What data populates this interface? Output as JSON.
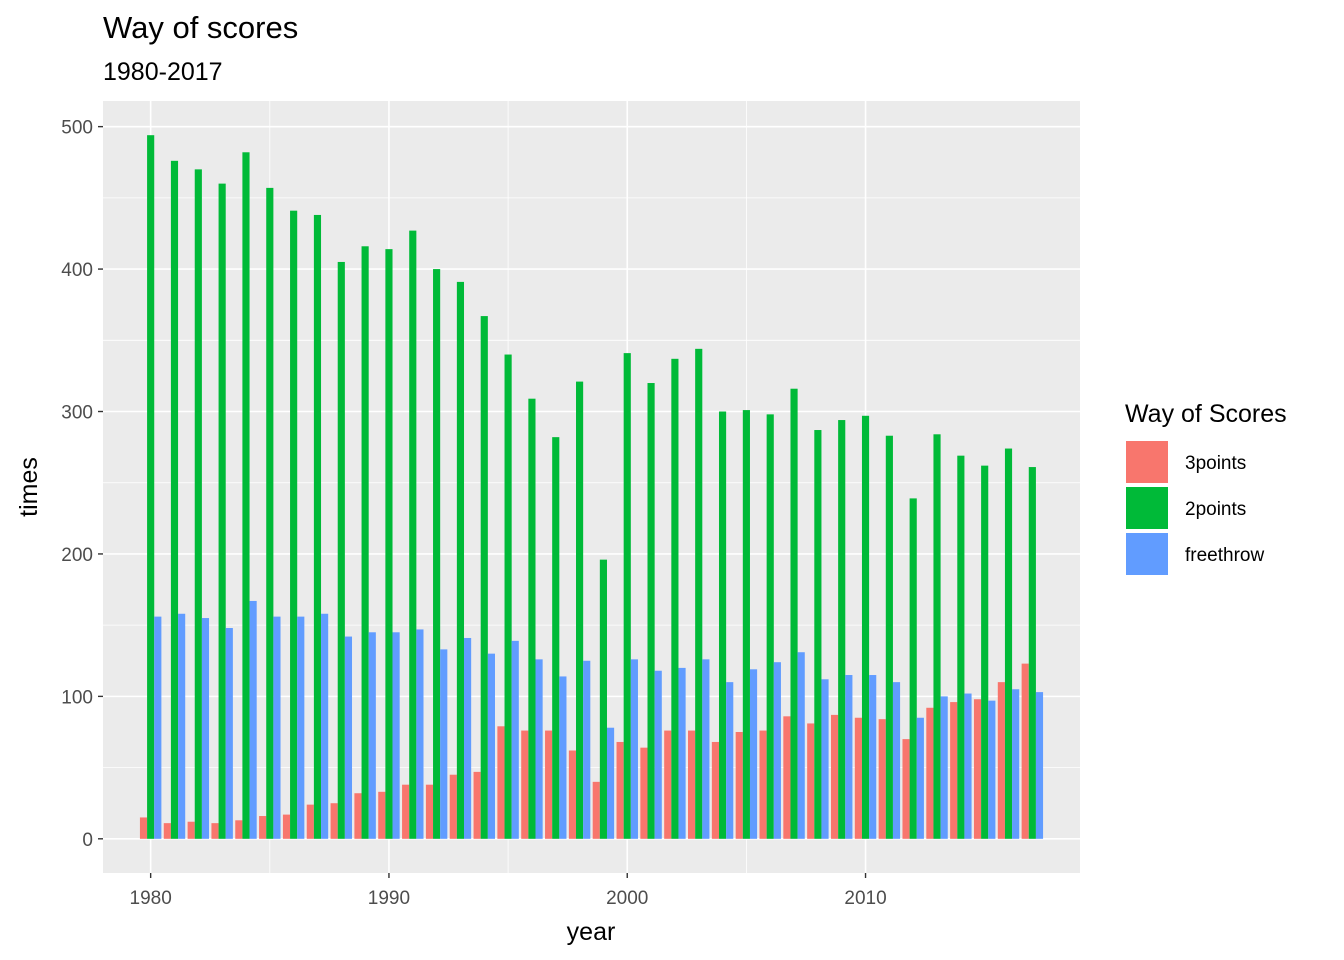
{
  "chart_data": {
    "type": "bar",
    "title": "Way of scores",
    "subtitle": "1980-2017",
    "xlabel": "year",
    "ylabel": "times",
    "xlim": [
      1978,
      2019
    ],
    "ylim": [
      -24,
      518
    ],
    "xticks": [
      1980,
      1990,
      2000,
      2010
    ],
    "yticks": [
      0,
      100,
      200,
      300,
      400,
      500
    ],
    "grid": true,
    "legend": {
      "title": "Way of Scores",
      "position": "right"
    },
    "x": [
      1980,
      1981,
      1982,
      1983,
      1984,
      1985,
      1986,
      1987,
      1988,
      1989,
      1990,
      1991,
      1992,
      1993,
      1994,
      1995,
      1996,
      1997,
      1998,
      1999,
      2000,
      2001,
      2002,
      2003,
      2004,
      2005,
      2006,
      2007,
      2008,
      2009,
      2010,
      2011,
      2012,
      2013,
      2014,
      2015,
      2016,
      2017
    ],
    "series": [
      {
        "name": "3points",
        "color": "#F8766D",
        "values": [
          15,
          11,
          12,
          11,
          13,
          16,
          17,
          24,
          25,
          32,
          33,
          38,
          38,
          45,
          47,
          79,
          76,
          76,
          62,
          40,
          68,
          64,
          76,
          76,
          68,
          75,
          76,
          86,
          81,
          87,
          85,
          84,
          70,
          92,
          96,
          98,
          110,
          123
        ]
      },
      {
        "name": "2points",
        "color": "#00BA38",
        "values": [
          494,
          476,
          470,
          460,
          482,
          457,
          441,
          438,
          405,
          416,
          414,
          427,
          400,
          391,
          367,
          340,
          309,
          282,
          321,
          196,
          341,
          320,
          337,
          344,
          300,
          301,
          298,
          316,
          287,
          294,
          297,
          283,
          239,
          284,
          269,
          262,
          274,
          261
        ]
      },
      {
        "name": "freethrow",
        "color": "#619CFF",
        "values": [
          156,
          158,
          155,
          148,
          167,
          156,
          156,
          158,
          142,
          145,
          145,
          147,
          133,
          141,
          130,
          139,
          126,
          114,
          125,
          78,
          126,
          118,
          120,
          126,
          110,
          119,
          124,
          131,
          112,
          115,
          115,
          110,
          85,
          100,
          102,
          97,
          105,
          103
        ]
      }
    ]
  }
}
